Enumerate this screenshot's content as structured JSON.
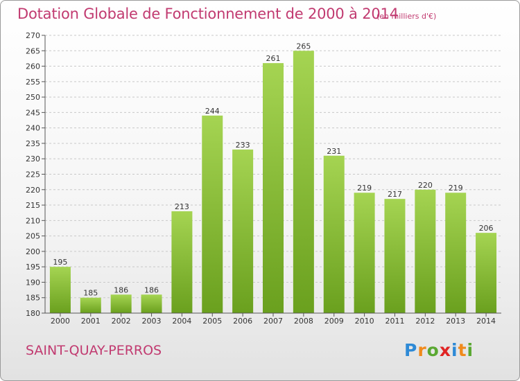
{
  "header": {
    "title": "Dotation Globale de Fonctionnement de 2000 à 2014",
    "unit": "(en milliers d'€)"
  },
  "footer": {
    "commune": "SAINT-QUAY-PERROS",
    "logo": [
      "P",
      "r",
      "o",
      "x",
      "i",
      "t",
      "i"
    ],
    "logo_colors": [
      "#2e8ad6",
      "#f08a1c",
      "#5aa832",
      "#e02424",
      "#2e8ad6",
      "#f08a1c",
      "#5aa832"
    ]
  },
  "colors": {
    "bar_light": "#a5d452",
    "bar_dark": "#6aa01e",
    "text_accent": "#c13a70"
  },
  "chart_data": {
    "type": "bar",
    "title": "Dotation Globale de Fonctionnement de 2000 à 2014",
    "subtitle": "(en milliers d'€)",
    "xlabel": "",
    "ylabel": "",
    "categories": [
      "2000",
      "2001",
      "2002",
      "2003",
      "2004",
      "2005",
      "2006",
      "2007",
      "2008",
      "2009",
      "2010",
      "2011",
      "2012",
      "2013",
      "2014"
    ],
    "values": [
      195,
      185,
      186,
      186,
      213,
      244,
      233,
      261,
      265,
      231,
      219,
      217,
      220,
      219,
      206
    ],
    "ylim": [
      180,
      270
    ],
    "yticks": [
      180,
      185,
      190,
      195,
      200,
      205,
      210,
      215,
      220,
      225,
      230,
      235,
      240,
      245,
      250,
      255,
      260,
      265,
      270
    ],
    "grid": true
  }
}
